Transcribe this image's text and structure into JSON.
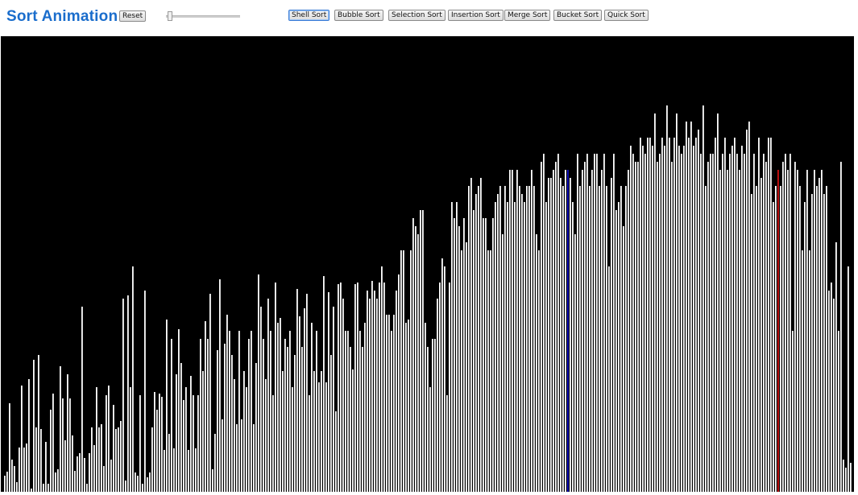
{
  "header": {
    "title": "Sort Animation",
    "reset_label": "Reset"
  },
  "speed_slider": {
    "level": 0
  },
  "sort_buttons": [
    {
      "label": "Shell Sort",
      "active": true
    },
    {
      "label": "Bubble Sort",
      "active": false
    },
    {
      "label": "Selection Sort",
      "active": false
    },
    {
      "label": "Insertion Sort",
      "active": false
    },
    {
      "label": "Merge Sort",
      "active": false
    },
    {
      "label": "Bucket Sort",
      "active": false
    },
    {
      "label": "Quick Sort",
      "active": false
    }
  ],
  "colors": {
    "background": "#000000",
    "bar": "#ffffff",
    "compare": "#1010c8",
    "swap": "#d01010",
    "title": "#1a6dcc"
  },
  "bars": {
    "max_value": 566,
    "highlight": {
      "compare_index": 233,
      "swap_index": 320
    },
    "values": [
      20,
      25,
      110,
      40,
      32,
      12,
      55,
      132,
      55,
      60,
      140,
      4,
      164,
      80,
      170,
      78,
      10,
      62,
      10,
      102,
      122,
      24,
      28,
      156,
      116,
      64,
      146,
      116,
      70,
      26,
      44,
      48,
      230,
      42,
      10,
      48,
      80,
      58,
      130,
      80,
      84,
      32,
      120,
      132,
      40,
      108,
      78,
      80,
      88,
      240,
      14,
      244,
      130,
      280,
      24,
      20,
      120,
      10,
      250,
      18,
      24,
      80,
      124,
      102,
      122,
      118,
      52,
      214,
      72,
      190,
      54,
      146,
      202,
      160,
      114,
      130,
      52,
      144,
      120,
      54,
      120,
      190,
      150,
      212,
      190,
      246,
      28,
      72,
      176,
      264,
      90,
      184,
      220,
      200,
      170,
      140,
      84,
      200,
      90,
      150,
      130,
      190,
      200,
      84,
      160,
      270,
      230,
      190,
      140,
      240,
      200,
      120,
      260,
      210,
      216,
      150,
      190,
      180,
      200,
      130,
      170,
      252,
      218,
      180,
      228,
      246,
      120,
      210,
      150,
      200,
      136,
      150,
      268,
      136,
      248,
      170,
      230,
      100,
      258,
      260,
      240,
      200,
      200,
      180,
      152,
      258,
      260,
      200,
      180,
      210,
      250,
      240,
      262,
      250,
      240,
      260,
      280,
      260,
      220,
      220,
      200,
      220,
      250,
      270,
      300,
      300,
      210,
      214,
      300,
      340,
      330,
      320,
      350,
      350,
      210,
      180,
      130,
      190,
      190,
      240,
      260,
      290,
      280,
      120,
      260,
      360,
      340,
      360,
      330,
      300,
      340,
      310,
      380,
      390,
      350,
      370,
      380,
      390,
      340,
      340,
      300,
      300,
      340,
      360,
      370,
      380,
      320,
      380,
      360,
      400,
      400,
      360,
      400,
      380,
      370,
      360,
      380,
      380,
      400,
      380,
      320,
      300,
      410,
      420,
      360,
      390,
      390,
      400,
      410,
      420,
      390,
      380,
      400,
      400,
      390,
      360,
      320,
      420,
      380,
      400,
      410,
      420,
      380,
      400,
      420,
      420,
      380,
      400,
      420,
      380,
      280,
      390,
      420,
      350,
      360,
      380,
      330,
      380,
      400,
      430,
      420,
      410,
      410,
      440,
      430,
      420,
      440,
      440,
      430,
      470,
      410,
      420,
      440,
      430,
      480,
      440,
      410,
      440,
      470,
      430,
      420,
      430,
      460,
      440,
      460,
      430,
      440,
      450,
      420,
      480,
      380,
      410,
      420,
      420,
      440,
      470,
      400,
      420,
      440,
      400,
      420,
      430,
      440,
      420,
      400,
      430,
      420,
      450,
      460,
      370,
      420,
      380,
      440,
      390,
      420,
      410,
      440,
      440,
      360,
      380,
      400,
      380,
      410,
      420,
      400,
      420,
      200,
      410,
      400,
      380,
      300,
      360,
      400,
      300,
      370,
      400,
      380,
      390,
      400,
      370,
      380,
      250,
      260,
      240,
      310,
      200,
      410,
      40,
      30,
      280,
      36
    ]
  }
}
